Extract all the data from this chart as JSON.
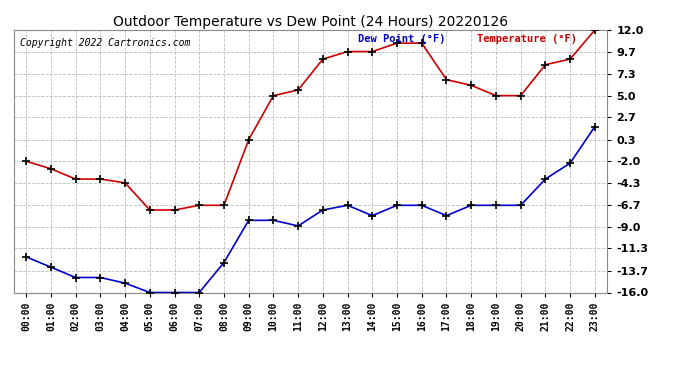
{
  "title": "Outdoor Temperature vs Dew Point (24 Hours) 20220126",
  "copyright": "Copyright 2022 Cartronics.com",
  "legend_dew": "Dew Point (°F)",
  "legend_temp": "Temperature (°F)",
  "x_labels": [
    "00:00",
    "01:00",
    "02:00",
    "03:00",
    "04:00",
    "05:00",
    "06:00",
    "07:00",
    "08:00",
    "09:00",
    "10:00",
    "11:00",
    "12:00",
    "13:00",
    "14:00",
    "15:00",
    "16:00",
    "17:00",
    "18:00",
    "19:00",
    "20:00",
    "21:00",
    "22:00",
    "23:00"
  ],
  "temperature": [
    -2.0,
    -2.8,
    -3.9,
    -3.9,
    -4.3,
    -7.2,
    -7.2,
    -6.7,
    -6.7,
    0.3,
    5.0,
    5.6,
    8.9,
    9.7,
    9.7,
    10.6,
    10.6,
    6.7,
    6.1,
    5.0,
    5.0,
    8.3,
    8.9,
    12.0
  ],
  "dew_point": [
    -12.2,
    -13.3,
    -14.4,
    -14.4,
    -15.0,
    -16.0,
    -16.0,
    -16.0,
    -12.8,
    -8.3,
    -8.3,
    -8.9,
    -7.2,
    -6.7,
    -7.8,
    -6.7,
    -6.7,
    -7.8,
    -6.7,
    -6.7,
    -6.7,
    -3.9,
    -2.2,
    1.7
  ],
  "ylim": [
    -16.0,
    12.0
  ],
  "yticks": [
    12.0,
    9.7,
    7.3,
    5.0,
    2.7,
    0.3,
    -2.0,
    -4.3,
    -6.7,
    -9.0,
    -11.3,
    -13.7,
    -16.0
  ],
  "bg_color": "#ffffff",
  "grid_color": "#bbbbbb",
  "temp_color": "#cc0000",
  "dew_color": "#0000cc",
  "marker_color": "#000000",
  "title_color": "#000000",
  "copyright_color": "#000000",
  "legend_dew_color": "#0000cc",
  "legend_temp_color": "#cc0000"
}
